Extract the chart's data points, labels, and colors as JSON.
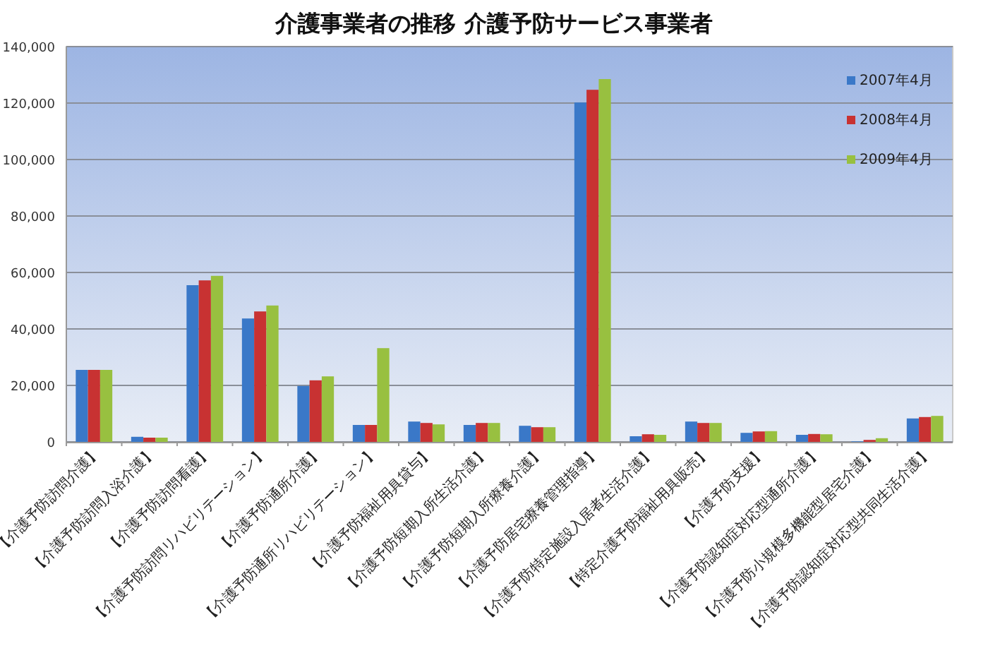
{
  "chart_data": {
    "type": "bar",
    "title": "介護事業者の推移  介護予防サービス事業者",
    "categories": [
      "【介護予防訪問介護】",
      "【介護予防訪問入浴介護】",
      "【介護予防訪問看護】",
      "【介護予防訪問リハビリテーション】",
      "【介護予防通所介護】",
      "【介護予防通所リハビリテーション】",
      "【介護予防福祉用具貸与】",
      "【介護予防短期入所生活介護】",
      "【介護予防短期入所療養介護】",
      "【介護予防居宅療養管理指導】",
      "【介護予防特定施設入居者生活介護】",
      "【特定介護予防福祉用具販売】",
      "【介護予防支援】",
      "【介護予防認知症対応型通所介護】",
      "【介護予防小規模多機能型居宅介護】",
      "【介護予防認知症対応型共同生活介護】"
    ],
    "series": [
      {
        "name": "2007年4月",
        "color": "#3a78c8",
        "values": [
          25500,
          1800,
          55500,
          43700,
          19800,
          6000,
          7200,
          6000,
          5700,
          120200,
          2000,
          7200,
          3200,
          2500,
          200,
          8300
        ]
      },
      {
        "name": "2008年4月",
        "color": "#c83232",
        "values": [
          25500,
          1500,
          57200,
          46200,
          21800,
          6000,
          6700,
          6700,
          5200,
          124700,
          2700,
          6700,
          3700,
          2800,
          700,
          8800
        ]
      },
      {
        "name": "2009年4月",
        "color": "#98c040",
        "values": [
          25500,
          1500,
          58800,
          48300,
          23200,
          33200,
          6200,
          6700,
          5200,
          128500,
          2500,
          6700,
          3800,
          2700,
          1300,
          9200
        ]
      }
    ],
    "ylim": [
      0,
      140000
    ],
    "yticks": [
      {
        "value": 0,
        "label": "0"
      },
      {
        "value": 20000,
        "label": "20,000"
      },
      {
        "value": 40000,
        "label": "40,000"
      },
      {
        "value": 60000,
        "label": "60,000"
      },
      {
        "value": 80000,
        "label": "80,000"
      },
      {
        "value": 100000,
        "label": "100,000"
      },
      {
        "value": 120000,
        "label": "120,000"
      },
      {
        "value": 140000,
        "label": "140,000"
      }
    ],
    "grid": "y",
    "legend": "top right"
  }
}
